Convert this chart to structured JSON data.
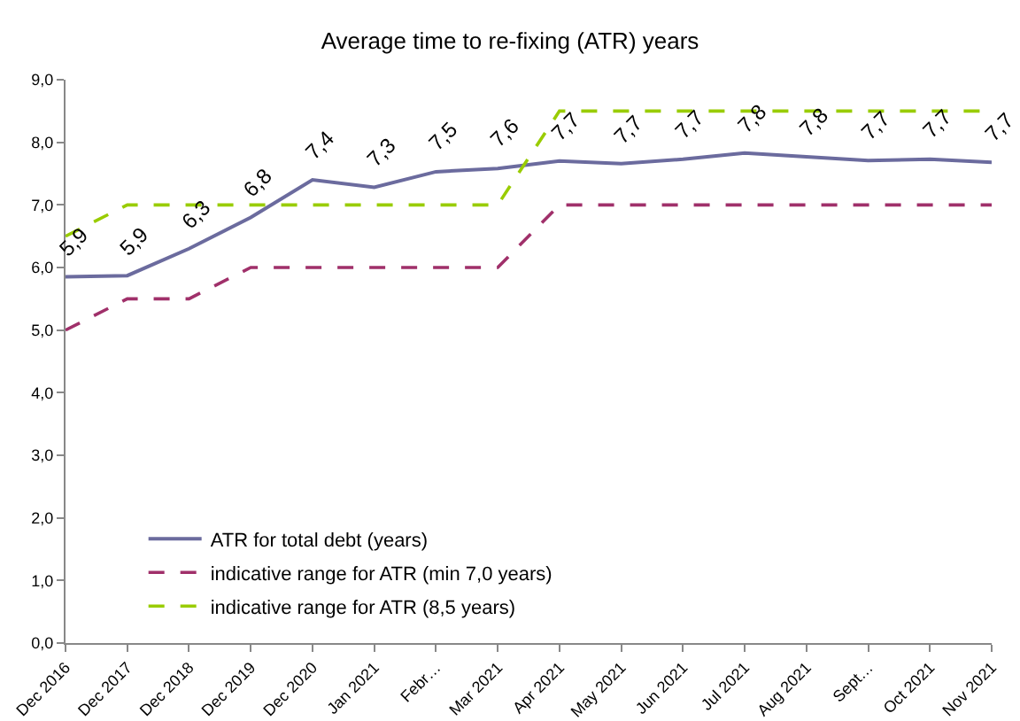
{
  "chart_data": {
    "type": "line",
    "title": "Average time to re-fixing (ATR) years",
    "categories": [
      "Dec 2016",
      "Dec 2017",
      "Dec 2018",
      "Dec 2019",
      "Dec 2020",
      "Jan 2021",
      "Febr…",
      "Mar 2021",
      "Apr 2021",
      "May 2021",
      "Jun 2021",
      "Jul 2021",
      "Aug 2021",
      "Sept…",
      "Oct 2021",
      "Nov 2021"
    ],
    "series": [
      {
        "name": "ATR for total debt (years)",
        "color": "#6b6b9e",
        "line_style": "solid",
        "values": [
          5.85,
          5.87,
          6.3,
          6.8,
          7.4,
          7.28,
          7.53,
          7.58,
          7.7,
          7.66,
          7.73,
          7.83,
          7.77,
          7.71,
          7.73,
          7.68
        ],
        "value_labels": [
          "5,9",
          "5,9",
          "6,3",
          "6,8",
          "7,4",
          "7,3",
          "7,5",
          "7,6",
          "7,7",
          "7,7",
          "7,7",
          "7,8",
          "7,8",
          "7,7",
          "7,7",
          "7,7"
        ]
      },
      {
        "name": "indicative range for ATR (min 7,0 years)",
        "color": "#a0306a",
        "line_style": "dashed",
        "values": [
          5.0,
          5.5,
          5.5,
          6.0,
          6.0,
          6.0,
          6.0,
          6.0,
          7.0,
          7.0,
          7.0,
          7.0,
          7.0,
          7.0,
          7.0,
          7.0
        ]
      },
      {
        "name": "indicative range for ATR (8,5 years)",
        "color": "#99cc00",
        "line_style": "dashed",
        "values": [
          6.5,
          7.0,
          7.0,
          7.0,
          7.0,
          7.0,
          7.0,
          7.0,
          8.5,
          8.5,
          8.5,
          8.5,
          8.5,
          8.5,
          8.5,
          8.5
        ]
      }
    ],
    "ylim": [
      0,
      9
    ],
    "yticks": [
      {
        "value": 0,
        "label": "0,0"
      },
      {
        "value": 1,
        "label": "1,0"
      },
      {
        "value": 2,
        "label": "2,0"
      },
      {
        "value": 3,
        "label": "3,0"
      },
      {
        "value": 4,
        "label": "4,0"
      },
      {
        "value": 5,
        "label": "5,0"
      },
      {
        "value": 6,
        "label": "6,0"
      },
      {
        "value": 7,
        "label": "7,0"
      },
      {
        "value": 8,
        "label": "8,0"
      },
      {
        "value": 9,
        "label": "9,0"
      }
    ],
    "legend": "bottom left",
    "marker": "none"
  }
}
